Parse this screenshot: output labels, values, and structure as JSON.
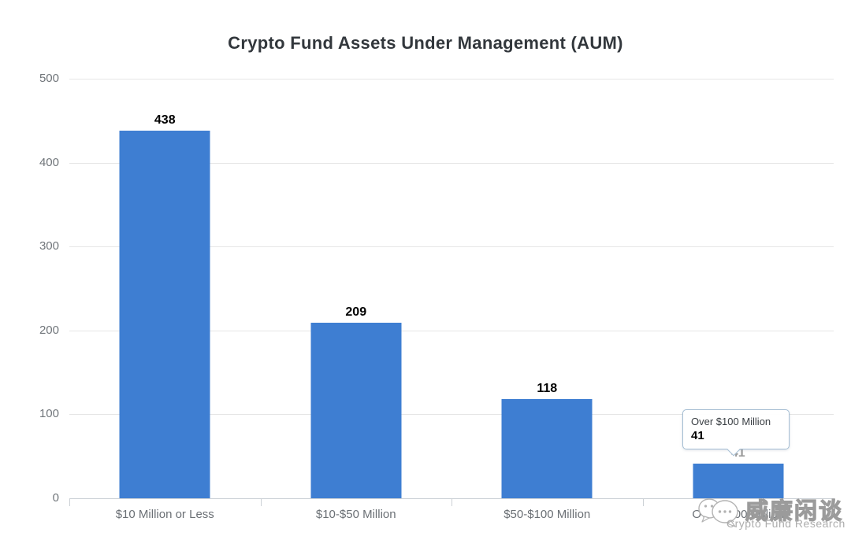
{
  "chart_data": {
    "type": "bar",
    "title": "Crypto Fund Assets Under Management (AUM)",
    "categories": [
      "$10 Million or Less",
      "$10-$50 Million",
      "$50-$100 Million",
      "Over $100 Million"
    ],
    "values": [
      438,
      209,
      118,
      41
    ],
    "xlabel": "",
    "ylabel": "",
    "ylim": [
      0,
      500
    ],
    "yticks": [
      0,
      100,
      200,
      300,
      400,
      500
    ],
    "grid": true,
    "legend": "none",
    "bar_color": "#3e7ed2",
    "hovered_index": 3
  },
  "tooltip": {
    "category": "Over $100 Million",
    "value": "41"
  },
  "watermark": {
    "brand": "威廉闲谈",
    "subtitle": "Crypto Fund Research"
  }
}
